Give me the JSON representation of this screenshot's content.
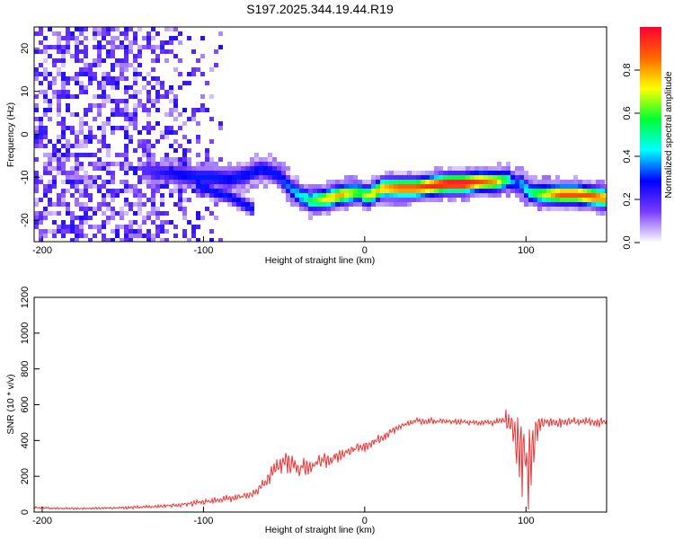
{
  "chart_data": [
    {
      "type": "heatmap",
      "title": "S197.2025.344.19.44.R19",
      "xlabel": "Height of straight line (km)",
      "ylabel": "Frequency (Hz)",
      "xlim": [
        -205,
        150
      ],
      "ylim": [
        -25,
        25
      ],
      "xticks": [
        -200,
        -100,
        0,
        100
      ],
      "yticks": [
        -20,
        -10,
        0,
        10,
        20
      ],
      "colorbar": {
        "label": "Normalized spectral amplitude",
        "range": [
          0,
          1
        ],
        "ticks": [
          0.0,
          0.2,
          0.4,
          0.6,
          0.8
        ],
        "tick_labels": [
          "0.0",
          "0.2",
          "0.4",
          "0.6",
          "0.8"
        ],
        "colormap": [
          "#ffffff",
          "#7a3cff",
          "#0000ff",
          "#00ffff",
          "#00ff33",
          "#ffff00",
          "#ff6600",
          "#ff0033"
        ]
      },
      "ridge": {
        "x": [
          -135,
          -125,
          -115,
          -105,
          -95,
          -85,
          -75,
          -65,
          -55,
          -45,
          -35,
          -25,
          -15,
          -5,
          0,
          10,
          20,
          30,
          40,
          50,
          60,
          70,
          80,
          88,
          92,
          96,
          100,
          110,
          120,
          130,
          140,
          150
        ],
        "freq": [
          -8,
          -8.5,
          -9,
          -9.5,
          -9.5,
          -10,
          -9,
          -7.5,
          -9,
          -13,
          -15,
          -14.5,
          -13.5,
          -13,
          -14,
          -12,
          -12,
          -12,
          -11.5,
          -11,
          -11,
          -10.5,
          -10.5,
          -10,
          -11,
          -11,
          -13,
          -13.5,
          -13.5,
          -13.5,
          -14,
          -14.5
        ],
        "amplitude": [
          0.2,
          0.25,
          0.3,
          0.3,
          0.3,
          0.3,
          0.3,
          0.3,
          0.3,
          0.4,
          0.55,
          0.75,
          0.8,
          0.6,
          0.7,
          0.8,
          0.9,
          0.9,
          0.95,
          1.0,
          1.0,
          0.9,
          0.8,
          0.5,
          0.3,
          0.4,
          0.5,
          0.7,
          0.9,
          0.9,
          0.9,
          0.8
        ]
      },
      "secondary_branch": {
        "x": [
          -105,
          -95,
          -85,
          -75,
          -70
        ],
        "freq": [
          -11,
          -13,
          -14,
          -16,
          -17
        ]
      }
    },
    {
      "type": "line",
      "title": "",
      "xlabel": "Height of straight line (km)",
      "ylabel": "SNR (10 * v/v)",
      "xlim": [
        -205,
        150
      ],
      "ylim": [
        0,
        1200
      ],
      "xticks": [
        -200,
        -100,
        0,
        100
      ],
      "yticks": [
        0,
        200,
        400,
        600,
        800,
        1000,
        1200
      ],
      "series": [
        {
          "name": "SNR",
          "color": "#ee3333",
          "x": [
            -205,
            -190,
            -175,
            -160,
            -145,
            -130,
            -115,
            -100,
            -90,
            -80,
            -70,
            -65,
            -60,
            -55,
            -50,
            -45,
            -40,
            -35,
            -30,
            -25,
            -20,
            -15,
            -10,
            -5,
            0,
            5,
            10,
            15,
            20,
            25,
            30,
            40,
            50,
            60,
            70,
            80,
            85,
            90,
            95,
            97,
            100,
            103,
            106,
            110,
            120,
            130,
            140,
            150
          ],
          "y": [
            25,
            20,
            20,
            22,
            25,
            30,
            40,
            55,
            70,
            80,
            95,
            130,
            190,
            240,
            280,
            270,
            250,
            250,
            270,
            290,
            300,
            320,
            340,
            360,
            370,
            390,
            410,
            440,
            470,
            490,
            505,
            510,
            505,
            505,
            500,
            500,
            510,
            500,
            380,
            300,
            250,
            300,
            450,
            500,
            500,
            505,
            505,
            500
          ],
          "amp": [
            15,
            12,
            12,
            14,
            18,
            20,
            25,
            35,
            40,
            45,
            45,
            55,
            80,
            120,
            140,
            140,
            130,
            120,
            100,
            90,
            80,
            70,
            70,
            70,
            70,
            60,
            55,
            50,
            45,
            40,
            40,
            40,
            35,
            35,
            35,
            35,
            60,
            200,
            350,
            500,
            650,
            450,
            200,
            80,
            60,
            55,
            55,
            55
          ]
        }
      ]
    }
  ]
}
